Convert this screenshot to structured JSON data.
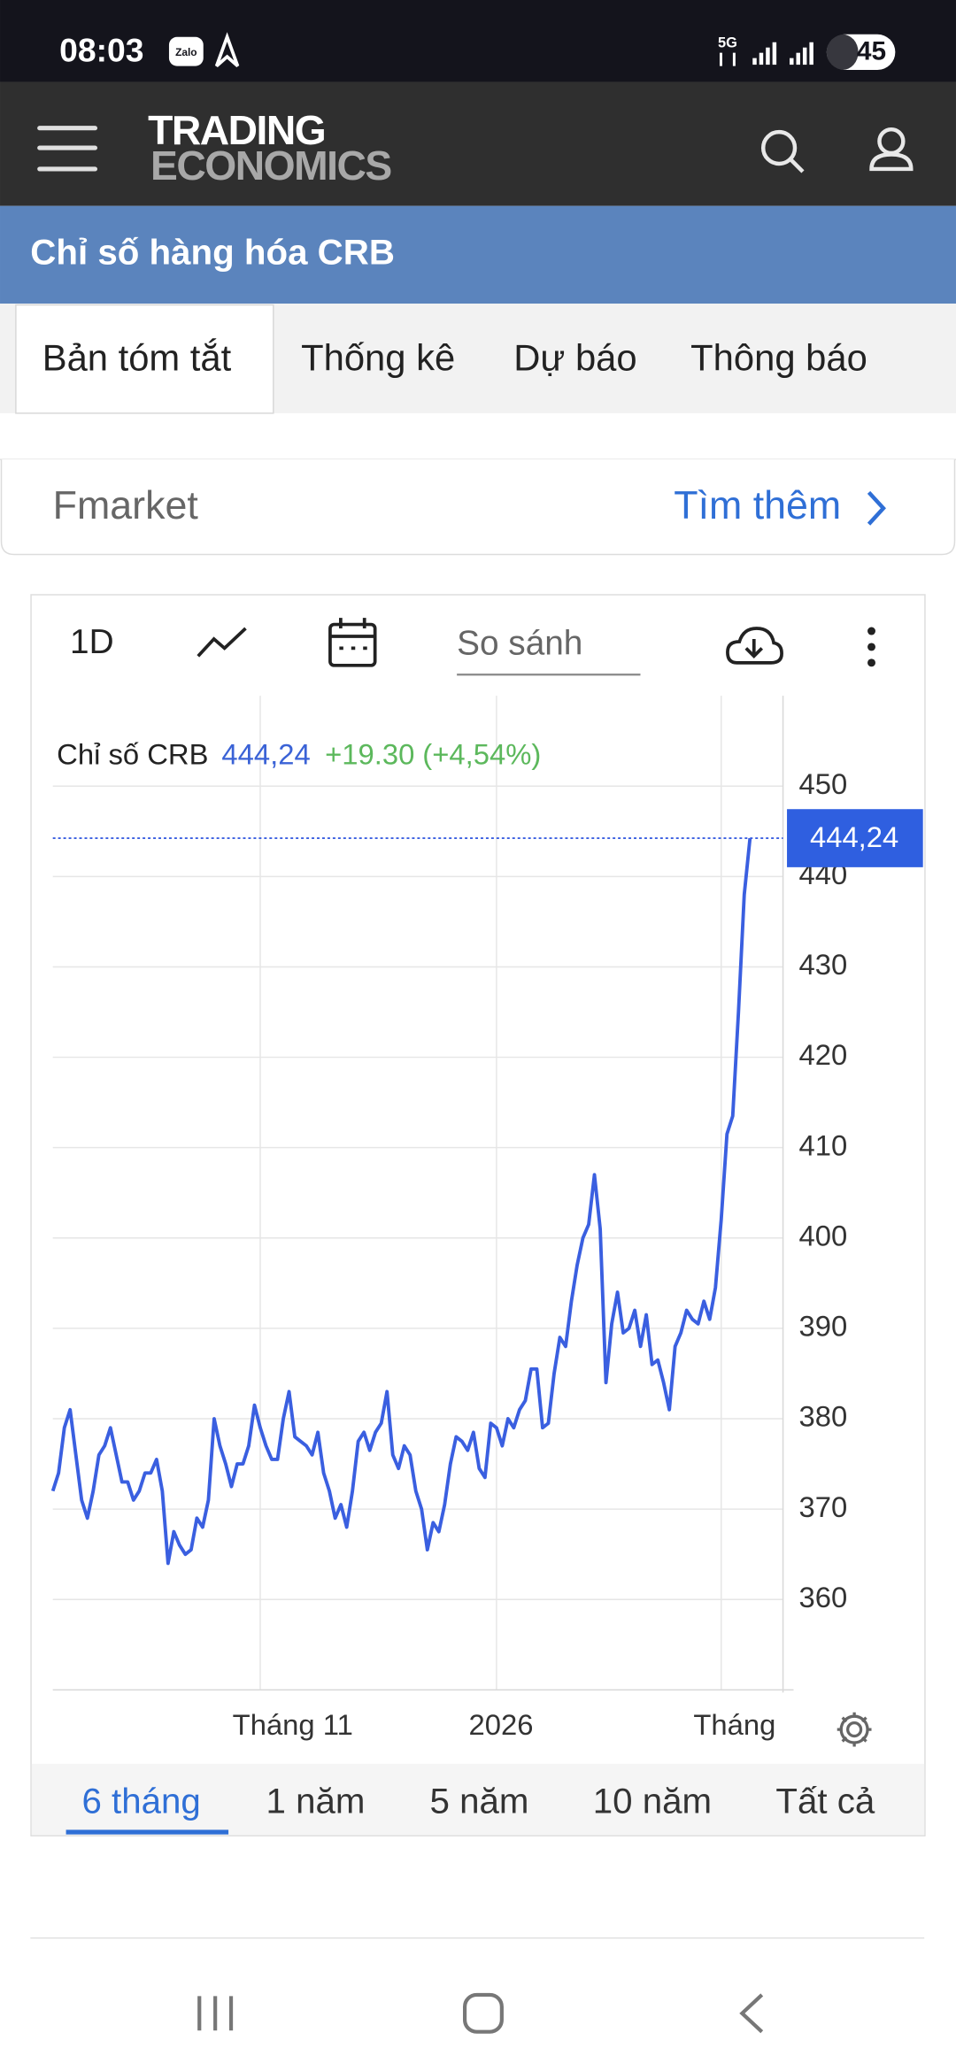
{
  "status_bar": {
    "time": "08:03",
    "app": "Zalo",
    "network": "5G",
    "battery": "45"
  },
  "header": {
    "logo_line1": "TRADING",
    "logo_line2": "ECONOMICS"
  },
  "title_bar": {
    "title": "Chỉ số hàng hóa CRB"
  },
  "tabs": [
    "Bản tóm tắt",
    "Thống kê",
    "Dự báo",
    "Thông báo"
  ],
  "promo": {
    "name": "Fmarket",
    "link": "Tìm thêm"
  },
  "toolbar": {
    "interval": "1D",
    "compare": "So sánh"
  },
  "chart_data": {
    "type": "line",
    "last_value_label": "444,24",
    "change": "+19.30",
    "change_pct": "(+4,54%)",
    "categories": [
      null,
      null,
      null,
      null,
      null,
      null,
      null,
      null,
      null,
      null,
      null,
      null,
      null,
      null,
      null,
      null,
      null,
      null,
      null,
      null,
      null,
      null,
      null,
      null,
      null,
      null,
      null,
      null,
      null,
      null,
      null,
      null,
      null,
      null,
      null,
      null,
      "Tháng 11",
      null,
      null,
      null,
      null,
      null,
      null,
      null,
      null,
      null,
      null,
      null,
      null,
      null,
      null,
      null,
      null,
      null,
      null,
      null,
      null,
      null,
      null,
      null,
      null,
      null,
      null,
      null,
      null,
      null,
      null,
      null,
      null,
      null,
      null,
      null,
      null,
      null,
      null,
      null,
      null,
      "2026",
      null,
      null,
      null,
      null,
      null,
      null,
      null,
      null,
      null,
      null,
      null,
      null,
      null,
      null,
      null,
      null,
      null,
      null,
      null,
      null,
      null,
      null,
      null,
      null,
      null,
      null,
      null,
      null,
      null,
      null,
      null,
      null,
      null,
      null,
      null,
      null,
      null,
      null,
      "Tháng",
      null,
      null,
      null,
      null,
      null
    ],
    "series": [
      {
        "name": "Chỉ số CRB",
        "color": "#3a5fe0",
        "values": [
          372,
          374,
          379,
          381,
          376,
          371,
          369,
          372,
          376,
          377,
          379,
          376,
          373,
          373,
          371,
          372,
          374,
          374,
          375.5,
          372,
          364,
          367.5,
          366,
          365,
          365.5,
          369,
          368,
          371,
          380,
          377,
          375,
          372.5,
          375,
          375,
          377,
          381.5,
          379,
          377,
          375.5,
          375.5,
          380,
          383,
          378,
          377.5,
          377,
          376,
          378.5,
          374,
          372,
          369,
          370.5,
          368,
          372,
          377.5,
          378.5,
          376.5,
          378.5,
          379.5,
          383,
          376,
          374.5,
          377,
          376,
          372,
          370,
          365.5,
          368.5,
          367.5,
          370.5,
          375,
          378,
          377.5,
          376.5,
          378.5,
          374.5,
          373.5,
          379.5,
          379,
          377,
          380,
          379,
          381,
          382,
          385.5,
          385.5,
          379,
          379.5,
          385,
          389,
          388,
          393,
          397,
          400,
          401.5,
          407,
          401,
          384,
          390.5,
          394,
          389.5,
          390,
          392,
          388,
          391.5,
          386,
          386.5,
          384,
          381,
          388,
          389.5,
          392,
          391,
          390.5,
          393,
          391,
          394.5,
          402,
          411.5,
          413.5,
          425,
          438,
          444.24
        ]
      }
    ],
    "ylim": [
      350,
      460
    ],
    "yticks": [
      360,
      370,
      380,
      390,
      400,
      410,
      420,
      430,
      440,
      450
    ],
    "grid": true
  },
  "ranges": [
    "6 tháng",
    "1 năm",
    "5 năm",
    "10 năm",
    "Tất cả"
  ]
}
